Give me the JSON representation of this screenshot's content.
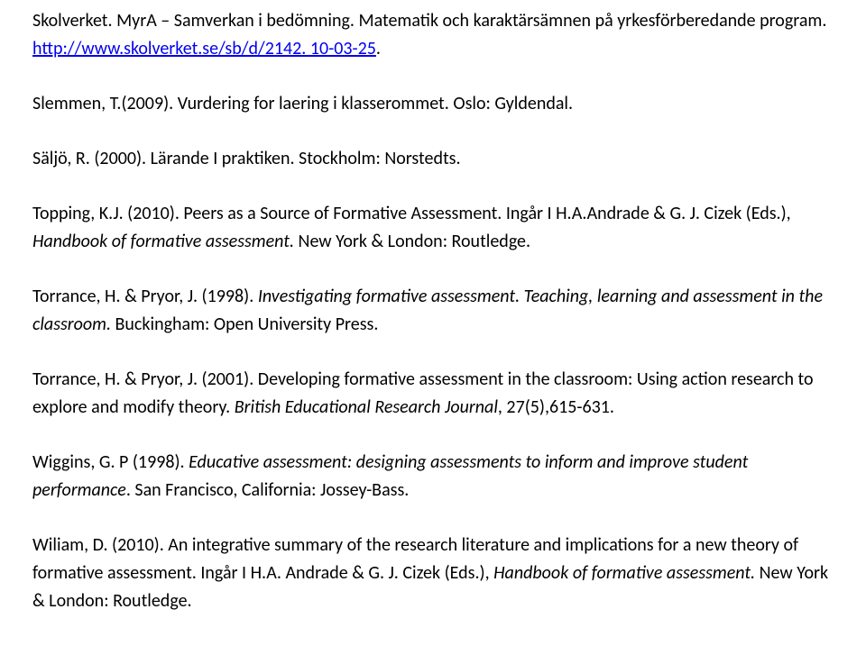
{
  "refs": [
    {
      "pre": "Skolverket. MyrA – Samverkan i bedömning. Matematik och karaktärsämnen på yrkesförberedande program. ",
      "link_text": "http://www.skolverket.se/sb/d/2142. 10-03-25",
      "post": "."
    },
    {
      "pre": "Slemmen, T.(2009). Vurdering for laering i klasserommet. Oslo: Gyldendal."
    },
    {
      "pre": "Säljö, R. (2000). Lärande I praktiken. Stockholm: Norstedts."
    },
    {
      "pre": "Topping, K.J. (2010). Peers as a Source of Formative Assessment. Ingår I H.A.Andrade & G. J. Cizek (Eds.), ",
      "italic": "Handbook of formative assessment. ",
      "post": "New York & London: Routledge."
    },
    {
      "pre": "Torrance, H. & Pryor, J. (1998). ",
      "italic": "Investigating formative assessment. Teaching, learning and assessment in the classroom. ",
      "post": "Buckingham: Open University Press."
    },
    {
      "pre": "Torrance, H. & Pryor, J. (2001). Developing formative assessment in the classroom: Using action research to explore and modify theory. ",
      "italic": "British Educational Research Journal",
      "post": ", 27(5),615-631."
    },
    {
      "pre": "Wiggins, G. P (1998). ",
      "italic": "Educative assessment: designing assessments to inform and improve student performance",
      "post": ". San Francisco, California: Jossey-Bass."
    },
    {
      "pre": "Wiliam, D. (2010). An integrative summary of the research literature and implications for a new theory of formative assessment. Ingår I H.A. Andrade & G. J. Cizek (Eds.), ",
      "italic": "Handbook of formative assessment. ",
      "post": "New York & London: Routledge."
    }
  ]
}
